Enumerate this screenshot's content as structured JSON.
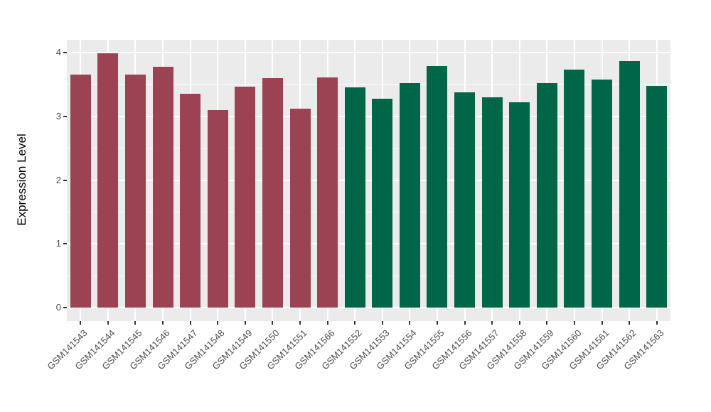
{
  "chart_data": {
    "type": "bar",
    "title": "",
    "xlabel": "",
    "ylabel": "Expression Level",
    "ylim": [
      -0.21,
      4.2
    ],
    "yticks": [
      0,
      1,
      2,
      3,
      4
    ],
    "yticks_minor": [
      0.5,
      1.5,
      2.5,
      3.5
    ],
    "grid": true,
    "legend": "none",
    "panel_background": "#EBEBEB",
    "gridline_color": "#FFFFFF",
    "tick_color": "#333333",
    "tick_label_color": "#4D4D4D",
    "series": [
      {
        "name": "left-group-maroon",
        "color": "#9C4353",
        "categories": [
          "GSM141543",
          "GSM141544",
          "GSM141545",
          "GSM141546",
          "GSM141547",
          "GSM141548",
          "GSM141549",
          "GSM141550",
          "GSM141551",
          "GSM141566"
        ],
        "values": [
          3.65,
          3.99,
          3.65,
          3.78,
          3.35,
          3.1,
          3.47,
          3.6,
          3.12,
          3.61
        ]
      },
      {
        "name": "right-group-green",
        "color": "#006648",
        "categories": [
          "GSM141552",
          "GSM141553",
          "GSM141554",
          "GSM141555",
          "GSM141556",
          "GSM141557",
          "GSM141558",
          "GSM141559",
          "GSM141560",
          "GSM141561",
          "GSM141562",
          "GSM141563"
        ],
        "values": [
          3.45,
          3.28,
          3.52,
          3.79,
          3.38,
          3.3,
          3.22,
          3.52,
          3.73,
          3.58,
          3.87,
          3.48
        ]
      }
    ]
  }
}
